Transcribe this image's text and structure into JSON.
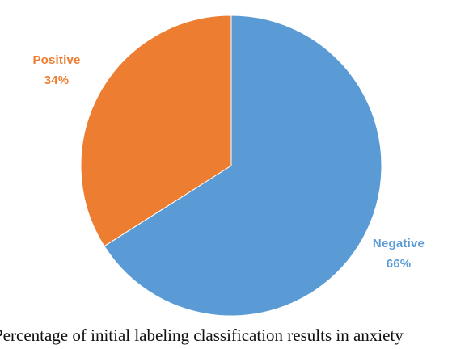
{
  "chart_data": {
    "type": "pie",
    "slices": [
      {
        "label": "Negative",
        "percent_label": "66%",
        "value": 66,
        "color": "#5b9bd5"
      },
      {
        "label": "Positive",
        "percent_label": "34%",
        "value": 34,
        "color": "#ed7d31"
      }
    ],
    "label_color": {
      "Negative": "#5b9bd5",
      "Positive": "#ed7d31"
    },
    "start_angle_deg": 0,
    "direction": "clockwise"
  },
  "caption": "Percentage of initial labeling classification results in anxiety"
}
